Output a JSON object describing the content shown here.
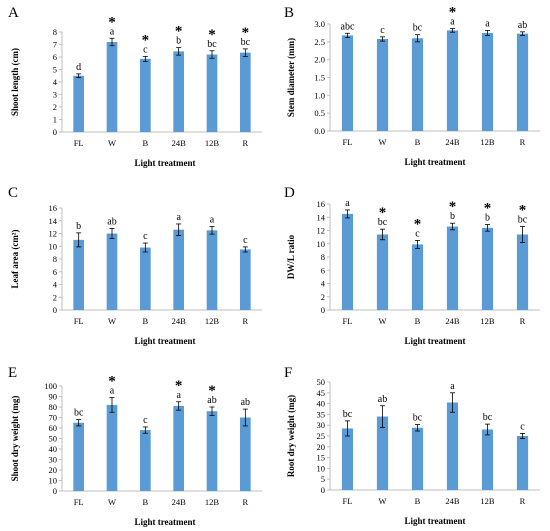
{
  "figure": {
    "accent_color": "#5b9bd5",
    "axis_color": "#bfbfbf"
  },
  "chart_data": [
    {
      "panel": "A",
      "type": "bar",
      "categories": [
        "FL",
        "W",
        "B",
        "24B",
        "12B",
        "R"
      ],
      "values": [
        4.5,
        7.2,
        5.85,
        6.45,
        6.2,
        6.35
      ],
      "errors": [
        0.15,
        0.3,
        0.2,
        0.3,
        0.3,
        0.3
      ],
      "letters": [
        "d",
        "a",
        "c",
        "b",
        "bc",
        "bc"
      ],
      "stars": [
        false,
        true,
        true,
        true,
        true,
        true
      ],
      "ylim": [
        0,
        8
      ],
      "ticks": [
        "0",
        "1",
        "2",
        "3",
        "4",
        "5",
        "6",
        "7",
        "8"
      ],
      "xlabel": "Light treatment",
      "ylabel": "Shoot length (cm)"
    },
    {
      "panel": "B",
      "type": "bar",
      "categories": [
        "FL",
        "W",
        "B",
        "24B",
        "12B",
        "R"
      ],
      "values": [
        2.68,
        2.58,
        2.6,
        2.82,
        2.75,
        2.73
      ],
      "errors": [
        0.06,
        0.06,
        0.1,
        0.05,
        0.07,
        0.05
      ],
      "letters": [
        "abc",
        "c",
        "bc",
        "a",
        "a",
        "ab"
      ],
      "stars": [
        false,
        false,
        false,
        true,
        false,
        false
      ],
      "ylim": [
        0,
        3
      ],
      "ticks": [
        "0.0",
        "0.5",
        "1.0",
        "1.5",
        "2.0",
        "2.5",
        "3.0"
      ],
      "xlabel": "Light treatment",
      "ylabel": "Stem diameter (mm)"
    },
    {
      "panel": "C",
      "type": "bar",
      "categories": [
        "FL",
        "W",
        "B",
        "24B",
        "12B",
        "R"
      ],
      "values": [
        11.0,
        12.0,
        9.8,
        12.6,
        12.5,
        9.5
      ],
      "errors": [
        1.1,
        0.8,
        0.7,
        0.9,
        0.6,
        0.4
      ],
      "letters": [
        "b",
        "ab",
        "c",
        "a",
        "a",
        "c"
      ],
      "stars": [
        false,
        false,
        false,
        false,
        false,
        false
      ],
      "ylim": [
        0,
        16
      ],
      "ticks": [
        "0",
        "2",
        "4",
        "6",
        "8",
        "10",
        "12",
        "14",
        "16"
      ],
      "xlabel": "Light treatment",
      "ylabel": "Leaf area (cm²)"
    },
    {
      "panel": "D",
      "type": "bar",
      "categories": [
        "FL",
        "W",
        "B",
        "24B",
        "12B",
        "R"
      ],
      "values": [
        14.5,
        11.4,
        9.9,
        12.6,
        12.4,
        11.4
      ],
      "errors": [
        0.6,
        0.8,
        0.6,
        0.5,
        0.5,
        1.2
      ],
      "letters": [
        "a",
        "bc",
        "c",
        "b",
        "b",
        "bc"
      ],
      "stars": [
        false,
        true,
        true,
        true,
        true,
        true
      ],
      "ylim": [
        0,
        16
      ],
      "ticks": [
        "0",
        "2",
        "4",
        "6",
        "8",
        "10",
        "12",
        "14",
        "16"
      ],
      "xlabel": "Light treatment",
      "ylabel": "DW/L ratio"
    },
    {
      "panel": "E",
      "type": "bar",
      "categories": [
        "FL",
        "W",
        "B",
        "24B",
        "12B",
        "R"
      ],
      "values": [
        65,
        82,
        58,
        81,
        76,
        70
      ],
      "errors": [
        3,
        7,
        3,
        4,
        4,
        8
      ],
      "letters": [
        "bc",
        "a",
        "c",
        "a",
        "ab",
        "ab"
      ],
      "stars": [
        false,
        true,
        false,
        true,
        true,
        false
      ],
      "ylim": [
        0,
        100
      ],
      "ticks": [
        "0",
        "10",
        "20",
        "30",
        "40",
        "50",
        "60",
        "70",
        "80",
        "90",
        "100"
      ],
      "xlabel": "Light treatment",
      "ylabel": "Shoot dry weight (mg)"
    },
    {
      "panel": "F",
      "type": "bar",
      "categories": [
        "FL",
        "W",
        "B",
        "24B",
        "12B",
        "R"
      ],
      "values": [
        28.5,
        34,
        28.8,
        40.5,
        28,
        25
      ],
      "errors": [
        3.5,
        5,
        1.5,
        4.5,
        2.5,
        1.2
      ],
      "letters": [
        "bc",
        "ab",
        "bc",
        "a",
        "bc",
        "c"
      ],
      "stars": [
        false,
        false,
        false,
        false,
        false,
        false
      ],
      "ylim": [
        0,
        50
      ],
      "ticks": [
        "0",
        "5",
        "10",
        "15",
        "20",
        "25",
        "30",
        "35",
        "40",
        "45",
        "50"
      ],
      "xlabel": "Light treatment",
      "ylabel": "Root dry weight (mg)"
    }
  ]
}
